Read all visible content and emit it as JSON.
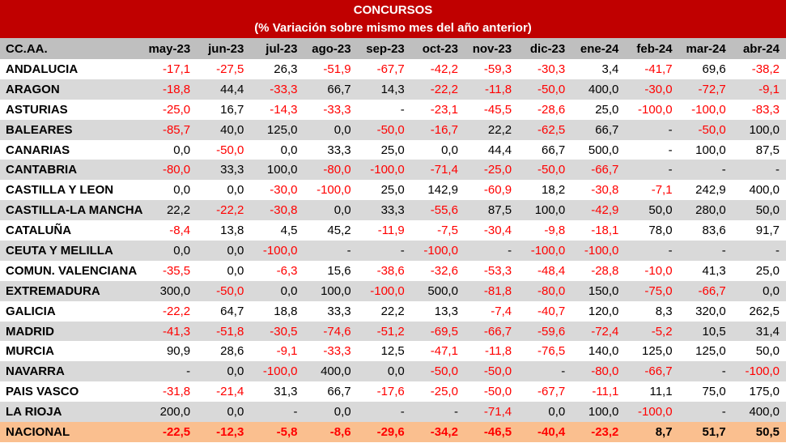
{
  "title": "CONCURSOS",
  "subtitle": "(% Variación sobre mismo mes del año anterior)",
  "colors": {
    "title_bg": "#C00000",
    "title_text": "#FFFFFF",
    "header_bg": "#BFBFBF",
    "alt_row_bg": "#D9D9D9",
    "total_row_bg": "#FABF8F",
    "negative": "#FF0000",
    "positive": "#000000"
  },
  "chart_data": {
    "type": "table",
    "title": "CONCURSOS",
    "subtitle": "(% Variación sobre mismo mes del año anterior)",
    "row_header": "CC.AA.",
    "columns": [
      "may-23",
      "jun-23",
      "jul-23",
      "ago-23",
      "sep-23",
      "oct-23",
      "nov-23",
      "dic-23",
      "ene-24",
      "feb-24",
      "mar-24",
      "abr-24"
    ],
    "rows": [
      {
        "name": "ANDALUCIA",
        "values": [
          "-17,1",
          "-27,5",
          "26,3",
          "-51,9",
          "-67,7",
          "-42,2",
          "-59,3",
          "-30,3",
          "3,4",
          "-41,7",
          "69,6",
          "-38,2"
        ]
      },
      {
        "name": "ARAGON",
        "values": [
          "-18,8",
          "44,4",
          "-33,3",
          "66,7",
          "14,3",
          "-22,2",
          "-11,8",
          "-50,0",
          "400,0",
          "-30,0",
          "-72,7",
          "-9,1"
        ]
      },
      {
        "name": "ASTURIAS",
        "values": [
          "-25,0",
          "16,7",
          "-14,3",
          "-33,3",
          "-",
          "-23,1",
          "-45,5",
          "-28,6",
          "25,0",
          "-100,0",
          "-100,0",
          "-83,3"
        ]
      },
      {
        "name": "BALEARES",
        "values": [
          "-85,7",
          "40,0",
          "125,0",
          "0,0",
          "-50,0",
          "-16,7",
          "22,2",
          "-62,5",
          "66,7",
          "-",
          "-50,0",
          "100,0"
        ]
      },
      {
        "name": "CANARIAS",
        "values": [
          "0,0",
          "-50,0",
          "0,0",
          "33,3",
          "25,0",
          "0,0",
          "44,4",
          "66,7",
          "500,0",
          "-",
          "100,0",
          "87,5"
        ]
      },
      {
        "name": "CANTABRIA",
        "values": [
          "-80,0",
          "33,3",
          "100,0",
          "-80,0",
          "-100,0",
          "-71,4",
          "-25,0",
          "-50,0",
          "-66,7",
          "-",
          "-",
          "-"
        ]
      },
      {
        "name": "CASTILLA Y LEON",
        "values": [
          "0,0",
          "0,0",
          "-30,0",
          "-100,0",
          "25,0",
          "142,9",
          "-60,9",
          "18,2",
          "-30,8",
          "-7,1",
          "242,9",
          "400,0"
        ]
      },
      {
        "name": "CASTILLA-LA MANCHA",
        "values": [
          "22,2",
          "-22,2",
          "-30,8",
          "0,0",
          "33,3",
          "-55,6",
          "87,5",
          "100,0",
          "-42,9",
          "50,0",
          "280,0",
          "50,0"
        ]
      },
      {
        "name": "CATALUÑA",
        "values": [
          "-8,4",
          "13,8",
          "4,5",
          "45,2",
          "-11,9",
          "-7,5",
          "-30,4",
          "-9,8",
          "-18,1",
          "78,0",
          "83,6",
          "91,7"
        ]
      },
      {
        "name": "CEUTA Y MELILLA",
        "values": [
          "0,0",
          "0,0",
          "-100,0",
          "-",
          "-",
          "-100,0",
          "-",
          "-100,0",
          "-100,0",
          "-",
          "-",
          "-"
        ]
      },
      {
        "name": "COMUN. VALENCIANA",
        "values": [
          "-35,5",
          "0,0",
          "-6,3",
          "15,6",
          "-38,6",
          "-32,6",
          "-53,3",
          "-48,4",
          "-28,8",
          "-10,0",
          "41,3",
          "25,0"
        ]
      },
      {
        "name": "EXTREMADURA",
        "values": [
          "300,0",
          "-50,0",
          "0,0",
          "100,0",
          "-100,0",
          "500,0",
          "-81,8",
          "-80,0",
          "150,0",
          "-75,0",
          "-66,7",
          "0,0"
        ]
      },
      {
        "name": "GALICIA",
        "values": [
          "-22,2",
          "64,7",
          "18,8",
          "33,3",
          "22,2",
          "13,3",
          "-7,4",
          "-40,7",
          "120,0",
          "8,3",
          "320,0",
          "262,5"
        ]
      },
      {
        "name": "MADRID",
        "values": [
          "-41,3",
          "-51,8",
          "-30,5",
          "-74,6",
          "-51,2",
          "-69,5",
          "-66,7",
          "-59,6",
          "-72,4",
          "-5,2",
          "10,5",
          "31,4"
        ]
      },
      {
        "name": "MURCIA",
        "values": [
          "90,9",
          "28,6",
          "-9,1",
          "-33,3",
          "12,5",
          "-47,1",
          "-11,8",
          "-76,5",
          "140,0",
          "125,0",
          "125,0",
          "50,0"
        ]
      },
      {
        "name": "NAVARRA",
        "values": [
          "-",
          "0,0",
          "-100,0",
          "400,0",
          "0,0",
          "-50,0",
          "-50,0",
          "-",
          "-80,0",
          "-66,7",
          "-",
          "-100,0"
        ]
      },
      {
        "name": "PAIS VASCO",
        "values": [
          "-31,8",
          "-21,4",
          "31,3",
          "66,7",
          "-17,6",
          "-25,0",
          "-50,0",
          "-67,7",
          "-11,1",
          "11,1",
          "75,0",
          "175,0"
        ]
      },
      {
        "name": "LA RIOJA",
        "values": [
          "200,0",
          "0,0",
          "-",
          "0,0",
          "-",
          "-",
          "-71,4",
          "0,0",
          "100,0",
          "-100,0",
          "-",
          "400,0"
        ]
      },
      {
        "name": "NACIONAL",
        "total": true,
        "values": [
          "-22,5",
          "-12,3",
          "-5,8",
          "-8,6",
          "-29,6",
          "-34,2",
          "-46,5",
          "-40,4",
          "-23,2",
          "8,7",
          "51,7",
          "50,5"
        ]
      }
    ]
  }
}
